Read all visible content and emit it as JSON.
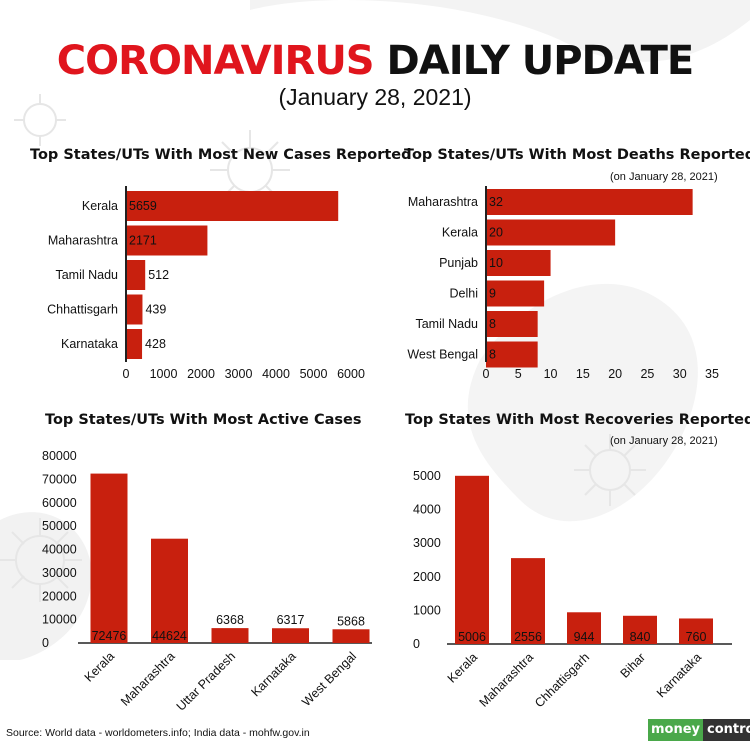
{
  "header": {
    "title_red": "CORONAVIRUS",
    "title_black": "DAILY UPDATE",
    "date": "(January 28, 2021)"
  },
  "colors": {
    "bar": "#c8200e",
    "accent": "#e0151d",
    "axis": "#222222"
  },
  "footer": {
    "source": "Source: World data - worldometers.info; India data - mohfw.gov.in",
    "logo_part1": "money",
    "logo_part2": "control"
  },
  "chart_data": [
    {
      "id": "new_cases",
      "type": "bar",
      "orientation": "horizontal",
      "title": "Top States/UTs With Most New Cases Reported",
      "note": "",
      "categories": [
        "Kerala",
        "Maharashtra",
        "Tamil Nadu",
        "Chhattisgarh",
        "Karnataka"
      ],
      "values": [
        5659,
        2171,
        512,
        439,
        428
      ],
      "value_labels": [
        "5659",
        "2171",
        "512",
        "439",
        "428"
      ],
      "xlim": [
        0,
        6000
      ],
      "ticks": [
        0,
        1000,
        2000,
        3000,
        4000,
        5000,
        6000
      ],
      "tick_labels": [
        "0",
        "1000",
        "2000",
        "3000",
        "4000",
        "5000",
        "6000"
      ]
    },
    {
      "id": "deaths",
      "type": "bar",
      "orientation": "horizontal",
      "title": "Top States/UTs With Most Deaths Reported",
      "note": "(on January 28, 2021)",
      "categories": [
        "Maharashtra",
        "Kerala",
        "Punjab",
        "Delhi",
        "Tamil Nadu",
        "West Bengal"
      ],
      "values": [
        32,
        20,
        10,
        9,
        8,
        8
      ],
      "value_labels": [
        "32",
        "20",
        "10",
        "9",
        "8",
        "8"
      ],
      "xlim": [
        0,
        35
      ],
      "ticks": [
        0,
        5,
        10,
        15,
        20,
        25,
        30,
        35
      ],
      "tick_labels": [
        "0",
        "5",
        "10",
        "15",
        "20",
        "25",
        "30",
        "35"
      ]
    },
    {
      "id": "active",
      "type": "bar",
      "orientation": "vertical",
      "title": "Top States/UTs With Most Active Cases",
      "note": "",
      "categories": [
        "Kerala",
        "Maharashtra",
        "Uttar Pradesh",
        "Karnataka",
        "West Bengal"
      ],
      "values": [
        72476,
        44624,
        6368,
        6317,
        5868
      ],
      "value_labels": [
        "72476",
        "44624",
        "6368",
        "6317",
        "5868"
      ],
      "ylim": [
        0,
        80000
      ],
      "ticks": [
        0,
        10000,
        20000,
        30000,
        40000,
        50000,
        60000,
        70000,
        80000
      ],
      "tick_labels": [
        "0",
        "10000",
        "20000",
        "30000",
        "40000",
        "50000",
        "60000",
        "70000",
        "80000"
      ]
    },
    {
      "id": "recoveries",
      "type": "bar",
      "orientation": "vertical",
      "title": "Top States With Most Recoveries Reported",
      "note": "(on January 28, 2021)",
      "categories": [
        "Kerala",
        "Maharashtra",
        "Chhattisgarh",
        "Bihar",
        "Karnataka"
      ],
      "values": [
        5006,
        2556,
        944,
        840,
        760
      ],
      "value_labels": [
        "5006",
        "2556",
        "944",
        "840",
        "760"
      ],
      "ylim": [
        0,
        5000
      ],
      "ticks": [
        0,
        1000,
        2000,
        3000,
        4000,
        5000
      ],
      "tick_labels": [
        "0",
        "1000",
        "2000",
        "3000",
        "4000",
        "5000"
      ]
    }
  ]
}
